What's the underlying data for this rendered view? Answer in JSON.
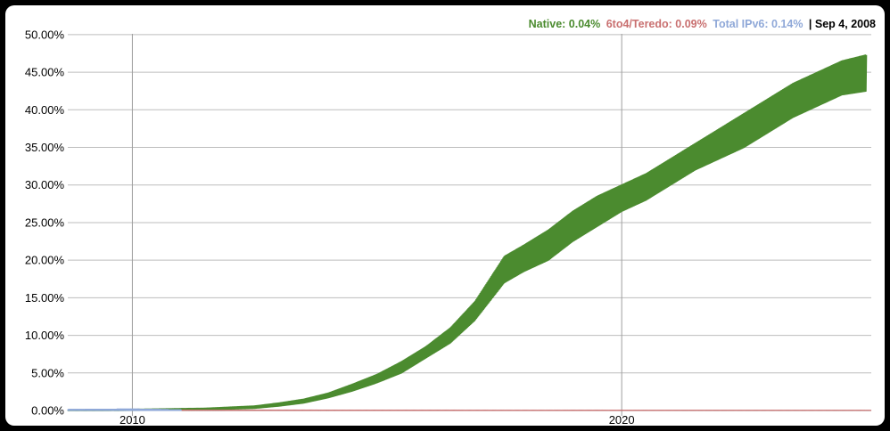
{
  "window": {
    "background": "#000000",
    "panel_background": "#ffffff"
  },
  "legend": {
    "native_label": "Native: 0.04%",
    "teredo_label": "6to4/Teredo: 0.09%",
    "total_label": "Total IPv6: 0.14%",
    "date_label": "| Sep 4, 2008",
    "colors": {
      "native": "#4b8b2f",
      "teredo": "#c97070",
      "total": "#8fa8d8",
      "date": "#000000"
    }
  },
  "chart_data": {
    "type": "area",
    "title": "",
    "xlabel": "",
    "ylabel": "",
    "x_ticks": [
      "2010",
      "2020"
    ],
    "y_ticks": [
      "0.00%",
      "5.00%",
      "10.00%",
      "15.00%",
      "20.00%",
      "25.00%",
      "30.00%",
      "35.00%",
      "40.00%",
      "45.00%",
      "50.00%"
    ],
    "xlim": [
      2008.68,
      2025.1
    ],
    "ylim": [
      0,
      52
    ],
    "grid": true,
    "legend_position": "top-right",
    "series": [
      {
        "name": "Native",
        "color": "#4b8b2f",
        "x": [
          2008.68,
          2009.5,
          2010.5,
          2011.5,
          2012.5,
          2013.0,
          2013.5,
          2014.0,
          2014.5,
          2015.0,
          2015.5,
          2016.0,
          2016.5,
          2017.0,
          2017.3,
          2017.6,
          2018.0,
          2018.5,
          2019.0,
          2019.5,
          2020.0,
          2020.5,
          2021.0,
          2021.5,
          2022.0,
          2022.5,
          2023.0,
          2023.5,
          2024.0,
          2024.5,
          2025.0
        ],
        "low": [
          0.0,
          0.0,
          0.05,
          0.1,
          0.3,
          0.6,
          1.0,
          1.7,
          2.6,
          3.7,
          5.0,
          7.0,
          9.0,
          12.0,
          14.5,
          17.0,
          18.5,
          20.0,
          22.5,
          24.5,
          26.5,
          28.0,
          30.0,
          32.0,
          33.5,
          35.0,
          37.0,
          39.0,
          40.5,
          42.0,
          42.5
        ],
        "high": [
          0.1,
          0.1,
          0.2,
          0.3,
          0.6,
          1.0,
          1.5,
          2.3,
          3.5,
          4.8,
          6.5,
          8.5,
          11.0,
          14.5,
          17.5,
          20.5,
          22.0,
          24.0,
          26.5,
          28.5,
          30.0,
          31.5,
          33.5,
          35.5,
          37.5,
          39.5,
          41.5,
          43.5,
          45.0,
          46.5,
          47.3
        ]
      },
      {
        "name": "6to4/Teredo",
        "color": "#c97070",
        "x": [
          2008.68,
          2025.1
        ],
        "low": [
          0.0,
          0.0
        ],
        "high": [
          0.09,
          0.05
        ]
      },
      {
        "name": "Total IPv6",
        "color": "#8fa8d8",
        "x": [
          2008.68,
          2010.0,
          2011.0
        ],
        "low": [
          0.0,
          0.0,
          0.0
        ],
        "high": [
          0.14,
          0.2,
          0.1
        ]
      }
    ]
  }
}
